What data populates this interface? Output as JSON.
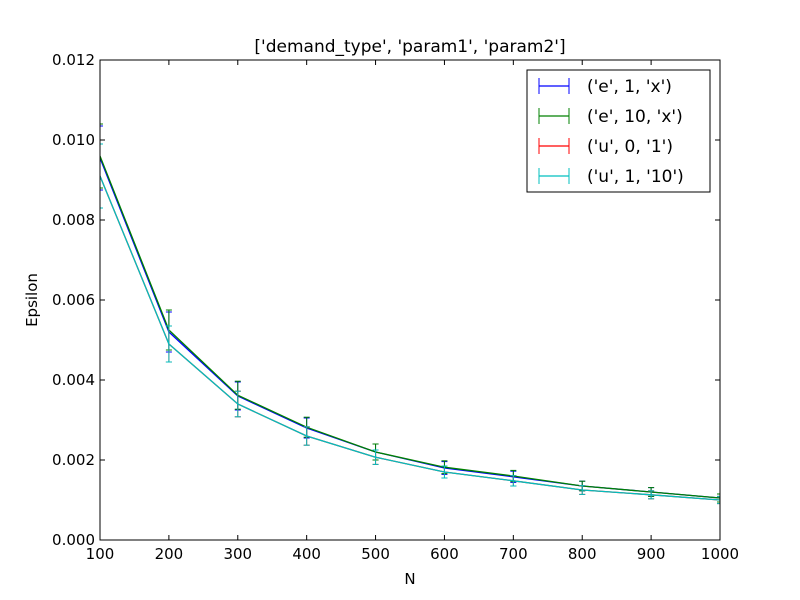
{
  "chart_data": {
    "type": "line",
    "title": "['demand_type', 'param1', 'param2']",
    "xlabel": "N",
    "ylabel": "Epsilon",
    "xlim": [
      100,
      1000
    ],
    "ylim": [
      0,
      0.012
    ],
    "xticks": [
      100,
      200,
      300,
      400,
      500,
      600,
      700,
      800,
      900,
      1000
    ],
    "xtick_labels": [
      "100",
      "200",
      "300",
      "400",
      "500",
      "600",
      "700",
      "800",
      "900",
      "1000"
    ],
    "yticks": [
      0,
      0.002,
      0.004,
      0.006,
      0.008,
      0.01,
      0.012
    ],
    "ytick_labels": [
      "0.000",
      "0.002",
      "0.004",
      "0.006",
      "0.008",
      "0.010",
      "0.012"
    ],
    "grid": false,
    "legend_position": "top-right",
    "x": [
      100,
      200,
      300,
      400,
      500,
      600,
      700,
      800,
      900,
      1000
    ],
    "series": [
      {
        "name": "('e', 1, 'x')",
        "color": "#0000ff",
        "values": [
          0.00955,
          0.0052,
          0.0036,
          0.0028,
          0.0022,
          0.0018,
          0.00158,
          0.00135,
          0.0012,
          0.00105
        ],
        "errors": [
          0.0008,
          0.0005,
          0.00035,
          0.00025,
          0.0002,
          0.00016,
          0.00014,
          0.00012,
          0.00011,
          0.0001
        ]
      },
      {
        "name": "('e', 10, 'x')",
        "color": "#008000",
        "values": [
          0.0096,
          0.00525,
          0.00362,
          0.00282,
          0.0022,
          0.00182,
          0.0016,
          0.00135,
          0.0012,
          0.00105
        ],
        "errors": [
          0.0008,
          0.0005,
          0.00035,
          0.00025,
          0.0002,
          0.00016,
          0.00014,
          0.00012,
          0.00011,
          0.0001
        ]
      },
      {
        "name": "('u', 0, '1')",
        "color": "#ff0000",
        "values": [
          0.0091,
          0.0049,
          0.0034,
          0.0026,
          0.00207,
          0.0017,
          0.00148,
          0.00125,
          0.00113,
          0.001
        ],
        "errors": [
          0.0008,
          0.00045,
          0.00032,
          0.00023,
          0.00018,
          0.00015,
          0.00013,
          0.00011,
          0.0001,
          9e-05
        ]
      },
      {
        "name": "('u', 1, '10')",
        "color": "#00bfbf",
        "values": [
          0.0091,
          0.0049,
          0.0034,
          0.0026,
          0.00207,
          0.0017,
          0.00148,
          0.00125,
          0.00113,
          0.001
        ],
        "errors": [
          0.0008,
          0.00045,
          0.00032,
          0.00023,
          0.00018,
          0.00015,
          0.00013,
          0.00011,
          0.0001,
          9e-05
        ]
      }
    ]
  }
}
